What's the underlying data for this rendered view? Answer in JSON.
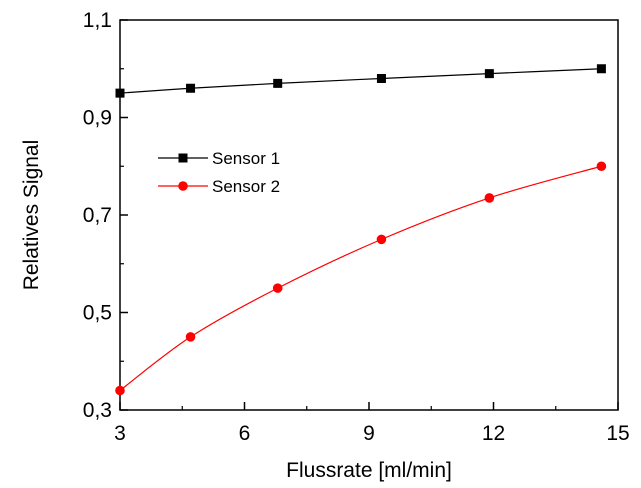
{
  "chart_data": {
    "type": "line",
    "xlabel": "Flussrate [ml/min]",
    "ylabel": "Relatives Signal",
    "xlim": [
      3,
      15
    ],
    "ylim": [
      0.3,
      1.1
    ],
    "xticks": [
      3,
      6,
      9,
      12,
      15
    ],
    "xtick_labels": [
      "3",
      "6",
      "9",
      "12",
      "15"
    ],
    "yticks": [
      0.3,
      0.5,
      0.7,
      0.9,
      1.1
    ],
    "ytick_labels": [
      "0,3",
      "0,5",
      "0,7",
      "0,9",
      "1,1"
    ],
    "grid": false,
    "legend_position": "upper-left",
    "series": [
      {
        "name": "Sensor 1",
        "color": "#000000",
        "marker": "square",
        "x": [
          3.0,
          4.7,
          6.8,
          9.3,
          11.9,
          14.6
        ],
        "y": [
          0.95,
          0.96,
          0.97,
          0.98,
          0.99,
          1.0
        ]
      },
      {
        "name": "Sensor 2",
        "color": "#ff0000",
        "marker": "circle",
        "x": [
          3.0,
          4.7,
          6.8,
          9.3,
          11.9,
          14.6
        ],
        "y": [
          0.34,
          0.45,
          0.55,
          0.65,
          0.735,
          0.8
        ]
      }
    ]
  }
}
